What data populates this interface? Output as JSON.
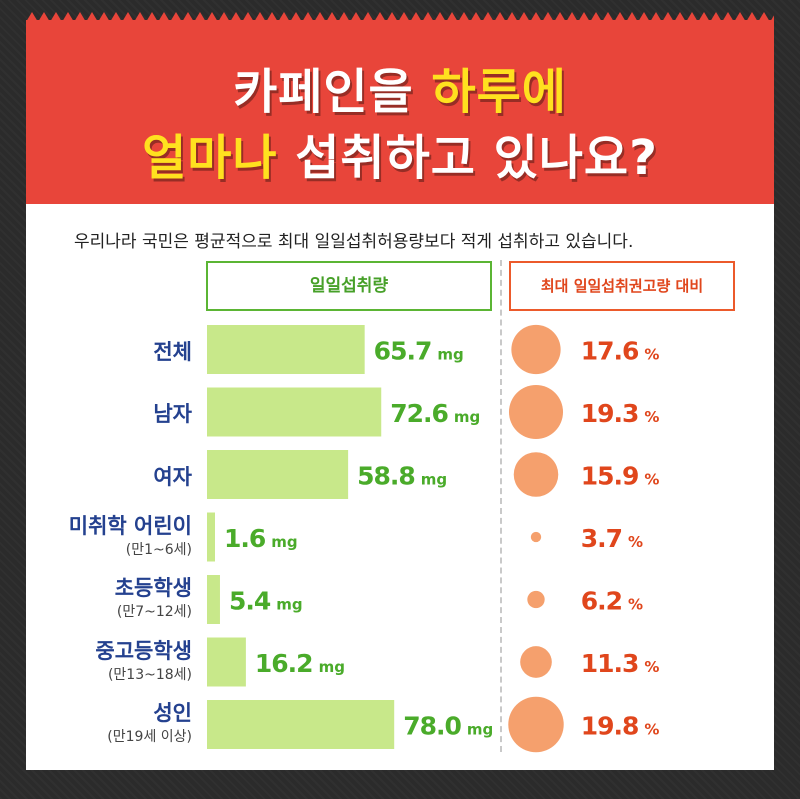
{
  "header": {
    "title_line1_white": "카페인을 ",
    "title_line1_yellow": "하루에",
    "title_line2_yellow": "얼마나",
    "title_line2_white": " 섭취하고 있나요?",
    "subtitle": "우리나라 국민은 평균적으로 최대 일일섭취허용량보다 적게 섭취하고 있습니다."
  },
  "colors": {
    "banner": "#e8453a",
    "highlight": "#ffe11f",
    "bar": "#c8e88a",
    "bar_value": "#4aab2a",
    "circle": "#f5a06d",
    "percent": "#e0461c",
    "category": "#24418f"
  },
  "chart_data": {
    "type": "bar",
    "categories": [
      {
        "name": "전체",
        "sub": ""
      },
      {
        "name": "남자",
        "sub": ""
      },
      {
        "name": "여자",
        "sub": ""
      },
      {
        "name": "미취학 어린이",
        "sub": "(만1~6세)"
      },
      {
        "name": "초등학생",
        "sub": "(만7~12세)"
      },
      {
        "name": "중고등학생",
        "sub": "(만13~18세)"
      },
      {
        "name": "성인",
        "sub": "(만19세 이상)"
      }
    ],
    "series": [
      {
        "name": "일일섭취량",
        "unit": "mg",
        "values": [
          65.7,
          72.6,
          58.8,
          1.6,
          5.4,
          16.2,
          78.0
        ],
        "labels": [
          "65.7",
          "72.6",
          "58.8",
          "1.6",
          "5.4",
          "16.2",
          "78.0"
        ]
      },
      {
        "name": "최대 일일섭취권고량 대비",
        "unit": "%",
        "values": [
          17.6,
          19.3,
          15.9,
          3.7,
          6.2,
          11.3,
          19.8
        ],
        "labels": [
          "17.6",
          "19.3",
          "15.9",
          "3.7",
          "6.2",
          "11.3",
          "19.8"
        ]
      }
    ]
  }
}
